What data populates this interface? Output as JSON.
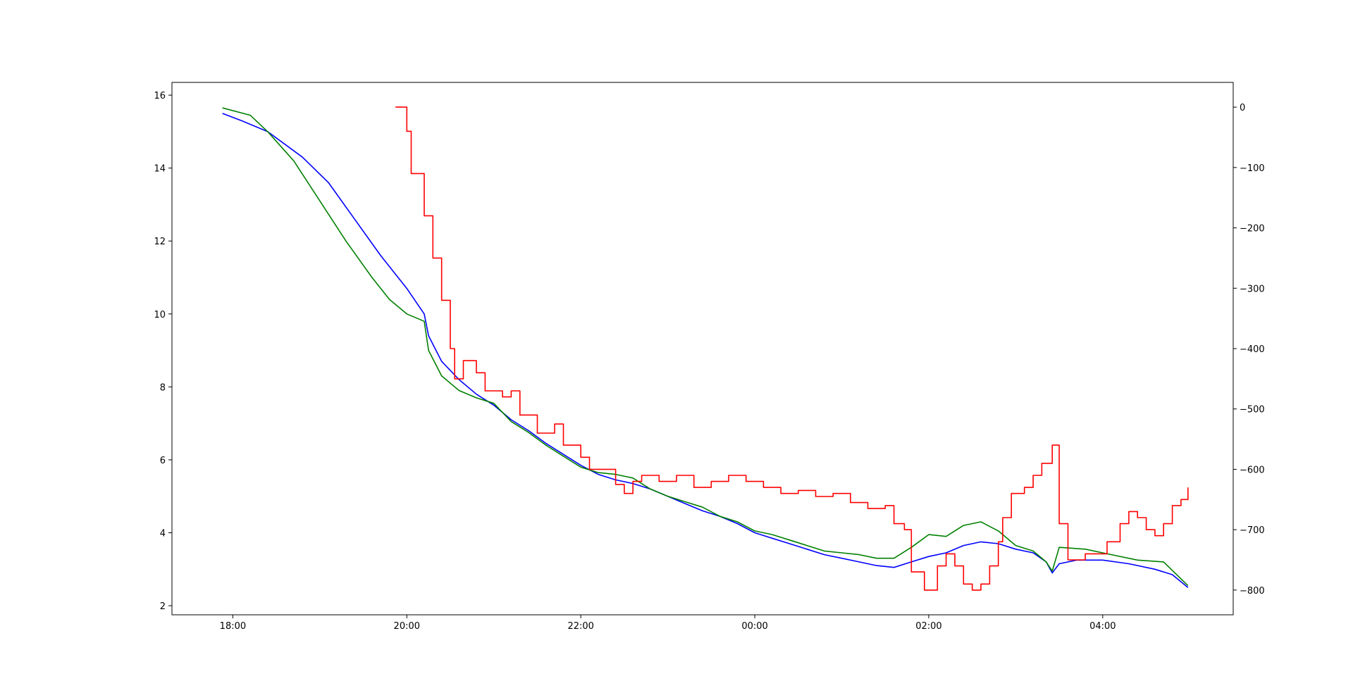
{
  "chart_data": {
    "type": "line",
    "title": "",
    "xlabel": "",
    "ylabel": "",
    "y2label": "",
    "grid": false,
    "x_unit": "hours since 00:00 (negative = previous evening)",
    "xlim": [
      -6.7,
      5.5
    ],
    "ylim": [
      1.75,
      16.35
    ],
    "y2lim": [
      -841,
      41
    ],
    "x_ticks": [
      {
        "value": -6,
        "label": "18:00"
      },
      {
        "value": -4,
        "label": "20:00"
      },
      {
        "value": -2,
        "label": "22:00"
      },
      {
        "value": 0,
        "label": "00:00"
      },
      {
        "value": 2,
        "label": "02:00"
      },
      {
        "value": 4,
        "label": "04:00"
      }
    ],
    "y_ticks": [
      {
        "value": 2,
        "label": "2"
      },
      {
        "value": 4,
        "label": "4"
      },
      {
        "value": 6,
        "label": "6"
      },
      {
        "value": 8,
        "label": "8"
      },
      {
        "value": 10,
        "label": "10"
      },
      {
        "value": 12,
        "label": "12"
      },
      {
        "value": 14,
        "label": "14"
      },
      {
        "value": 16,
        "label": "16"
      }
    ],
    "y2_ticks": [
      {
        "value": 0,
        "label": "0"
      },
      {
        "value": -100,
        "label": "−100"
      },
      {
        "value": -200,
        "label": "−200"
      },
      {
        "value": -300,
        "label": "−300"
      },
      {
        "value": -400,
        "label": "−400"
      },
      {
        "value": -500,
        "label": "−500"
      },
      {
        "value": -600,
        "label": "−600"
      },
      {
        "value": -700,
        "label": "−700"
      },
      {
        "value": -800,
        "label": "−800"
      }
    ],
    "series": [
      {
        "color": "#0000ff",
        "axis": "left",
        "style": "line",
        "points": [
          [
            -6.12,
            15.5
          ],
          [
            -5.9,
            15.3
          ],
          [
            -5.6,
            15.0
          ],
          [
            -5.2,
            14.3
          ],
          [
            -4.9,
            13.6
          ],
          [
            -4.6,
            12.6
          ],
          [
            -4.3,
            11.6
          ],
          [
            -4.0,
            10.7
          ],
          [
            -3.8,
            10.0
          ],
          [
            -3.75,
            9.4
          ],
          [
            -3.6,
            8.7
          ],
          [
            -3.4,
            8.2
          ],
          [
            -3.2,
            7.8
          ],
          [
            -3.0,
            7.5
          ],
          [
            -2.8,
            7.1
          ],
          [
            -2.6,
            6.8
          ],
          [
            -2.4,
            6.45
          ],
          [
            -2.2,
            6.15
          ],
          [
            -2.0,
            5.85
          ],
          [
            -1.8,
            5.6
          ],
          [
            -1.6,
            5.45
          ],
          [
            -1.4,
            5.35
          ],
          [
            -1.2,
            5.2
          ],
          [
            -1.0,
            5.0
          ],
          [
            -0.8,
            4.8
          ],
          [
            -0.6,
            4.6
          ],
          [
            -0.4,
            4.45
          ],
          [
            -0.2,
            4.25
          ],
          [
            0.0,
            4.0
          ],
          [
            0.2,
            3.85
          ],
          [
            0.4,
            3.7
          ],
          [
            0.6,
            3.55
          ],
          [
            0.8,
            3.4
          ],
          [
            1.0,
            3.3
          ],
          [
            1.2,
            3.2
          ],
          [
            1.4,
            3.1
          ],
          [
            1.6,
            3.05
          ],
          [
            1.8,
            3.2
          ],
          [
            2.0,
            3.35
          ],
          [
            2.2,
            3.45
          ],
          [
            2.4,
            3.65
          ],
          [
            2.6,
            3.75
          ],
          [
            2.8,
            3.7
          ],
          [
            3.0,
            3.55
          ],
          [
            3.2,
            3.45
          ],
          [
            3.35,
            3.2
          ],
          [
            3.42,
            2.9
          ],
          [
            3.5,
            3.15
          ],
          [
            3.7,
            3.25
          ],
          [
            4.0,
            3.25
          ],
          [
            4.3,
            3.15
          ],
          [
            4.6,
            3.0
          ],
          [
            4.8,
            2.85
          ],
          [
            4.98,
            2.5
          ]
        ]
      },
      {
        "color": "#008000",
        "axis": "left",
        "style": "line",
        "points": [
          [
            -6.12,
            15.65
          ],
          [
            -5.8,
            15.45
          ],
          [
            -5.6,
            15.0
          ],
          [
            -5.3,
            14.2
          ],
          [
            -5.0,
            13.1
          ],
          [
            -4.7,
            12.0
          ],
          [
            -4.4,
            11.0
          ],
          [
            -4.2,
            10.4
          ],
          [
            -4.0,
            10.0
          ],
          [
            -3.8,
            9.8
          ],
          [
            -3.75,
            9.0
          ],
          [
            -3.6,
            8.3
          ],
          [
            -3.4,
            7.9
          ],
          [
            -3.2,
            7.7
          ],
          [
            -3.0,
            7.55
          ],
          [
            -2.8,
            7.05
          ],
          [
            -2.6,
            6.75
          ],
          [
            -2.4,
            6.4
          ],
          [
            -2.2,
            6.1
          ],
          [
            -2.0,
            5.8
          ],
          [
            -1.8,
            5.65
          ],
          [
            -1.6,
            5.6
          ],
          [
            -1.4,
            5.5
          ],
          [
            -1.2,
            5.2
          ],
          [
            -1.0,
            5.0
          ],
          [
            -0.8,
            4.85
          ],
          [
            -0.6,
            4.7
          ],
          [
            -0.4,
            4.45
          ],
          [
            -0.2,
            4.3
          ],
          [
            0.0,
            4.05
          ],
          [
            0.2,
            3.95
          ],
          [
            0.4,
            3.8
          ],
          [
            0.6,
            3.65
          ],
          [
            0.8,
            3.5
          ],
          [
            1.0,
            3.45
          ],
          [
            1.2,
            3.4
          ],
          [
            1.4,
            3.3
          ],
          [
            1.6,
            3.3
          ],
          [
            1.8,
            3.6
          ],
          [
            2.0,
            3.95
          ],
          [
            2.2,
            3.9
          ],
          [
            2.4,
            4.2
          ],
          [
            2.6,
            4.3
          ],
          [
            2.8,
            4.05
          ],
          [
            3.0,
            3.65
          ],
          [
            3.2,
            3.5
          ],
          [
            3.35,
            3.2
          ],
          [
            3.42,
            2.95
          ],
          [
            3.5,
            3.6
          ],
          [
            3.8,
            3.55
          ],
          [
            4.1,
            3.4
          ],
          [
            4.4,
            3.25
          ],
          [
            4.7,
            3.2
          ],
          [
            4.98,
            2.55
          ]
        ]
      },
      {
        "color": "#ff0000",
        "axis": "right",
        "style": "step",
        "points": [
          [
            -4.13,
            0
          ],
          [
            -4.0,
            -40
          ],
          [
            -3.95,
            -110
          ],
          [
            -3.8,
            -180
          ],
          [
            -3.7,
            -250
          ],
          [
            -3.6,
            -320
          ],
          [
            -3.5,
            -400
          ],
          [
            -3.45,
            -450
          ],
          [
            -3.35,
            -420
          ],
          [
            -3.2,
            -440
          ],
          [
            -3.1,
            -470
          ],
          [
            -2.9,
            -480
          ],
          [
            -2.8,
            -470
          ],
          [
            -2.7,
            -510
          ],
          [
            -2.5,
            -540
          ],
          [
            -2.3,
            -525
          ],
          [
            -2.2,
            -560
          ],
          [
            -2.0,
            -580
          ],
          [
            -1.9,
            -600
          ],
          [
            -1.7,
            -600
          ],
          [
            -1.6,
            -625
          ],
          [
            -1.5,
            -640
          ],
          [
            -1.4,
            -620
          ],
          [
            -1.3,
            -610
          ],
          [
            -1.1,
            -620
          ],
          [
            -0.9,
            -610
          ],
          [
            -0.7,
            -630
          ],
          [
            -0.5,
            -620
          ],
          [
            -0.3,
            -610
          ],
          [
            -0.1,
            -620
          ],
          [
            0.1,
            -630
          ],
          [
            0.3,
            -640
          ],
          [
            0.5,
            -635
          ],
          [
            0.7,
            -645
          ],
          [
            0.9,
            -640
          ],
          [
            1.1,
            -655
          ],
          [
            1.3,
            -665
          ],
          [
            1.5,
            -660
          ],
          [
            1.6,
            -690
          ],
          [
            1.72,
            -700
          ],
          [
            1.8,
            -770
          ],
          [
            1.95,
            -800
          ],
          [
            2.1,
            -760
          ],
          [
            2.2,
            -740
          ],
          [
            2.3,
            -760
          ],
          [
            2.4,
            -790
          ],
          [
            2.5,
            -800
          ],
          [
            2.6,
            -790
          ],
          [
            2.7,
            -760
          ],
          [
            2.8,
            -720
          ],
          [
            2.85,
            -680
          ],
          [
            2.95,
            -640
          ],
          [
            3.1,
            -630
          ],
          [
            3.2,
            -610
          ],
          [
            3.3,
            -590
          ],
          [
            3.42,
            -560
          ],
          [
            3.5,
            -690
          ],
          [
            3.6,
            -750
          ],
          [
            3.8,
            -740
          ],
          [
            4.0,
            -740
          ],
          [
            4.05,
            -720
          ],
          [
            4.2,
            -690
          ],
          [
            4.3,
            -670
          ],
          [
            4.4,
            -680
          ],
          [
            4.5,
            -700
          ],
          [
            4.6,
            -710
          ],
          [
            4.7,
            -690
          ],
          [
            4.8,
            -660
          ],
          [
            4.9,
            -650
          ],
          [
            4.98,
            -630
          ]
        ]
      }
    ]
  }
}
